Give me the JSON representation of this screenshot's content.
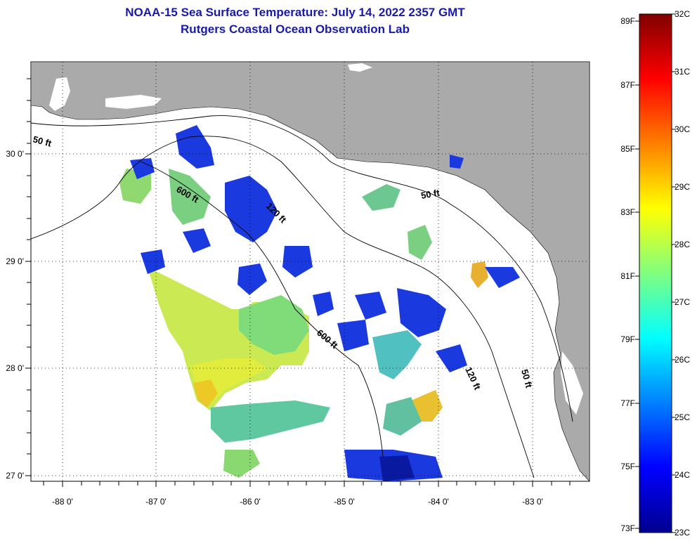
{
  "header": {
    "title": "NOAA-15 Sea Surface Temperature:  July 14, 2022 2357 GMT",
    "subtitle": "Rutgers Coastal Ocean Observation Lab"
  },
  "axes": {
    "lon_labels": [
      "-88 0'",
      "-87 0'",
      "-86 0'",
      "-85 0'",
      "-84 0'",
      "-83 0'"
    ],
    "lat_labels": [
      "30 0'",
      "29 0'",
      "28 0'",
      "27 0'"
    ]
  },
  "contours": {
    "labels": [
      "50 ft",
      "600 ft",
      "120 ft",
      "50 ft",
      "600 ft",
      "120 ft",
      "50 ft"
    ]
  },
  "colorbar": {
    "fahrenheit": [
      "89F",
      "87F",
      "85F",
      "83F",
      "81F",
      "79F",
      "77F",
      "75F",
      "73F"
    ],
    "celsius": [
      "32C",
      "31C",
      "30C",
      "29C",
      "28C",
      "27C",
      "26C",
      "25C",
      "24C",
      "23C"
    ]
  },
  "colors": {
    "land": "#aaaaaa",
    "title": "#1a1aa8"
  }
}
